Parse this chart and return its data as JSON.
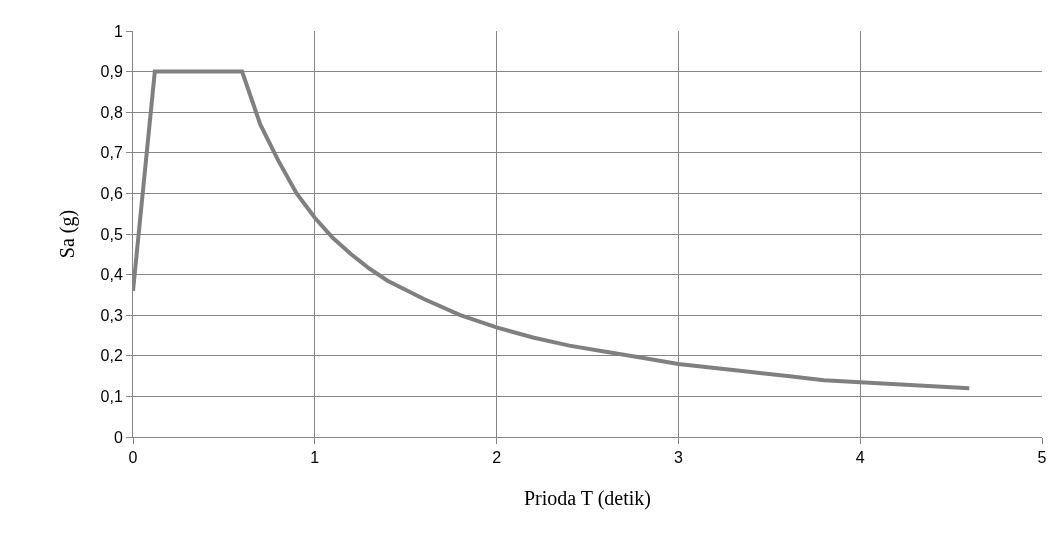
{
  "chart_data": {
    "type": "line",
    "xlabel": "Prioda T (detik)",
    "ylabel": "Sa (g)",
    "series": [
      {
        "color": "#808080",
        "x": [
          0,
          0.12,
          0.6,
          0.7,
          0.8,
          0.9,
          1.0,
          1.1,
          1.2,
          1.3,
          1.4,
          1.6,
          1.8,
          2.0,
          2.2,
          2.4,
          2.6,
          2.8,
          3.0,
          3.2,
          3.4,
          3.6,
          3.8,
          4.0,
          4.2,
          4.4,
          4.6
        ],
        "values": [
          0.36,
          0.9,
          0.9,
          0.77,
          0.68,
          0.6,
          0.54,
          0.49,
          0.45,
          0.415,
          0.385,
          0.34,
          0.3,
          0.27,
          0.245,
          0.225,
          0.21,
          0.195,
          0.18,
          0.17,
          0.16,
          0.15,
          0.14,
          0.135,
          0.13,
          0.125,
          0.12
        ]
      }
    ],
    "xlim": [
      0,
      5
    ],
    "xticks": [
      0,
      1,
      2,
      3,
      4,
      5
    ],
    "ylim": [
      0,
      1
    ],
    "yticks": [
      0,
      {
        "value": 0.1,
        "label": "0,1"
      },
      {
        "value": 0.2,
        "label": "0,2"
      },
      {
        "value": 0.3,
        "label": "0,3"
      },
      {
        "value": 0.4,
        "label": "0,4"
      },
      {
        "value": 0.5,
        "label": "0,5"
      },
      {
        "value": 0.6,
        "label": "0,6"
      },
      {
        "value": 0.7,
        "label": "0,7"
      },
      {
        "value": 0.8,
        "label": "0,8"
      },
      {
        "value": 0.9,
        "label": "0,9"
      },
      1
    ],
    "grid": true,
    "marker": "none",
    "line_style": "solid"
  }
}
